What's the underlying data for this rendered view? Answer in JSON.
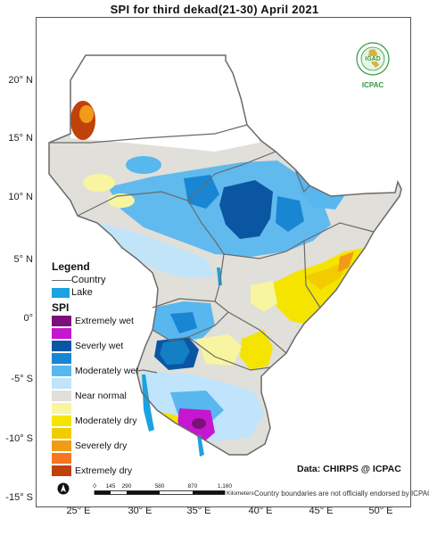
{
  "title": "SPI  for  third  dekad(21-30)  April 2021",
  "axes": {
    "lat_ticks": [
      "20° N",
      "15° N",
      "10° N",
      "5° N",
      "0°",
      "-5° S",
      "-10° S",
      "-15° S"
    ],
    "lon_ticks": [
      "25° E",
      "30° E",
      "35° E",
      "40° E",
      "45° E",
      "50° E"
    ]
  },
  "legend": {
    "title": "Legend",
    "country_label": "Country",
    "lake_label": "Lake",
    "spi_title": "SPI",
    "classes": [
      {
        "label": "Extremely wet",
        "color": "#7b1178"
      },
      {
        "label": "",
        "color": "#c716cf"
      },
      {
        "label": "Severly wet",
        "color": "#0b56a3"
      },
      {
        "label": "",
        "color": "#1986d4"
      },
      {
        "label": "Moderately wet",
        "color": "#58b7ef"
      },
      {
        "label": "",
        "color": "#bfe4fb"
      },
      {
        "label": "Near normal",
        "color": "#e0dfd9"
      },
      {
        "label": "",
        "color": "#f7f5a0"
      },
      {
        "label": "Moderately dry",
        "color": "#f5e400"
      },
      {
        "label": "",
        "color": "#f3cc00"
      },
      {
        "label": "Severely dry",
        "color": "#f29b16"
      },
      {
        "label": "",
        "color": "#f57520"
      },
      {
        "label": "Extremely dry",
        "color": "#c0410a"
      }
    ],
    "lake_color": "#1ba2e0",
    "country_line_color": "#6a6a6a"
  },
  "credit": "Data: CHIRPS @ ICPAC",
  "disclaimer": "Country boundaries are not officially endorsed by ICPAC",
  "scale_bar": {
    "labels": [
      "0",
      "145",
      "290",
      "580",
      "870",
      "1,160"
    ],
    "unit": "Kilometers"
  },
  "logo": {
    "top_text": "IGAD",
    "bottom_text": "ICPAC",
    "color": "#2e9a3c"
  },
  "north_arrow_icon": "north-arrow-icon"
}
